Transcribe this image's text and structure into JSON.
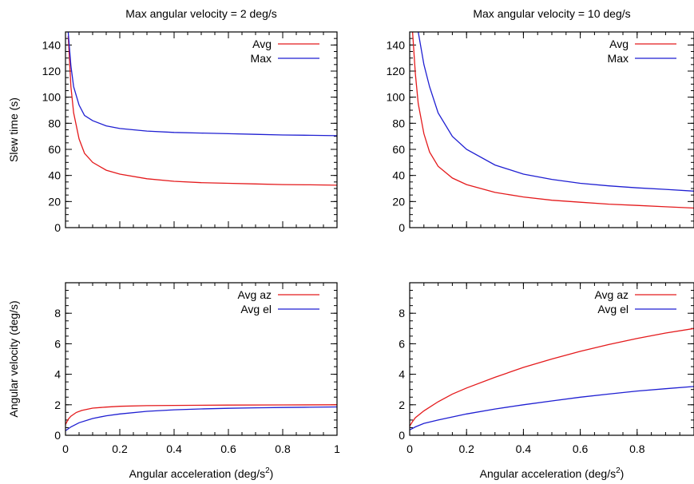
{
  "chart_data": [
    {
      "type": "line",
      "title": "Max angular velocity = 2 deg/s",
      "xlabel": "",
      "ylabel": "Slew time (s)",
      "xlim": [
        0,
        1
      ],
      "ylim": [
        0,
        150
      ],
      "xticks": [
        0,
        0.2,
        0.4,
        0.6,
        0.8,
        1
      ],
      "xtick_labels_shown": false,
      "yticks": [
        0,
        20,
        40,
        60,
        80,
        100,
        120,
        140
      ],
      "legend": "top-right",
      "grid": false,
      "series": [
        {
          "name": "Avg",
          "color": "#e41a1c",
          "x": [
            0.01,
            0.02,
            0.03,
            0.05,
            0.07,
            0.1,
            0.15,
            0.2,
            0.3,
            0.4,
            0.5,
            0.6,
            0.7,
            0.8,
            0.9,
            1.0
          ],
          "y": [
            147,
            108,
            88,
            68,
            57,
            50,
            44,
            41,
            37.5,
            35.5,
            34.5,
            34,
            33.5,
            33,
            32.8,
            32.5
          ]
        },
        {
          "name": "Max",
          "color": "#1f1fd2",
          "x": [
            0.01,
            0.02,
            0.03,
            0.05,
            0.07,
            0.1,
            0.15,
            0.2,
            0.3,
            0.4,
            0.5,
            0.6,
            0.7,
            0.8,
            0.9,
            1.0
          ],
          "y": [
            150,
            124,
            108,
            94,
            86,
            82,
            78,
            76,
            74,
            73,
            72.5,
            72,
            71.5,
            71,
            70.8,
            70.5
          ]
        }
      ]
    },
    {
      "type": "line",
      "title": "Max angular velocity = 10 deg/s",
      "xlabel": "",
      "ylabel": "",
      "xlim": [
        0,
        1
      ],
      "ylim": [
        0,
        150
      ],
      "xticks": [
        0,
        0.2,
        0.4,
        0.6,
        0.8,
        1
      ],
      "xtick_labels_shown": false,
      "yticks": [
        0,
        20,
        40,
        60,
        80,
        100,
        120,
        140
      ],
      "legend": "top-right",
      "grid": false,
      "series": [
        {
          "name": "Avg",
          "color": "#e41a1c",
          "x": [
            0.01,
            0.02,
            0.03,
            0.05,
            0.07,
            0.1,
            0.15,
            0.2,
            0.3,
            0.4,
            0.5,
            0.6,
            0.7,
            0.8,
            0.9,
            1.0
          ],
          "y": [
            150,
            118,
            95,
            72,
            58,
            47,
            38,
            33,
            27,
            23.5,
            21,
            19.5,
            18,
            17,
            16,
            15
          ]
        },
        {
          "name": "Max",
          "color": "#1f1fd2",
          "x": [
            0.03,
            0.05,
            0.07,
            0.1,
            0.15,
            0.2,
            0.3,
            0.4,
            0.5,
            0.6,
            0.7,
            0.8,
            0.9,
            1.0
          ],
          "y": [
            150,
            125,
            108,
            88,
            70,
            60,
            48,
            41,
            37,
            34,
            32,
            30.5,
            29.3,
            28
          ]
        }
      ]
    },
    {
      "type": "line",
      "title": "",
      "xlabel": "Angular acceleration (deg/s²)",
      "ylabel": "Angular velocity (deg/s)",
      "xlim": [
        0,
        1
      ],
      "ylim": [
        0,
        10
      ],
      "xticks": [
        0,
        0.2,
        0.4,
        0.6,
        0.8,
        1
      ],
      "xtick_labels": [
        "0",
        "0.2",
        "0.4",
        "0.6",
        "0.8",
        "1"
      ],
      "yticks": [
        0,
        2,
        4,
        6,
        8
      ],
      "legend": "top-right",
      "grid": false,
      "series": [
        {
          "name": "Avg az",
          "color": "#e41a1c",
          "x": [
            0.0,
            0.01,
            0.02,
            0.04,
            0.06,
            0.1,
            0.15,
            0.2,
            0.3,
            0.4,
            0.6,
            0.8,
            1.0
          ],
          "y": [
            0.7,
            1.05,
            1.25,
            1.5,
            1.63,
            1.78,
            1.85,
            1.9,
            1.94,
            1.96,
            1.98,
            1.99,
            2.0
          ]
        },
        {
          "name": "Avg el",
          "color": "#1f1fd2",
          "x": [
            0.0,
            0.02,
            0.05,
            0.1,
            0.15,
            0.2,
            0.3,
            0.4,
            0.5,
            0.6,
            0.7,
            0.8,
            0.9,
            1.0
          ],
          "y": [
            0.3,
            0.55,
            0.82,
            1.1,
            1.28,
            1.4,
            1.57,
            1.67,
            1.73,
            1.77,
            1.8,
            1.82,
            1.84,
            1.86
          ]
        }
      ]
    },
    {
      "type": "line",
      "title": "",
      "xlabel": "Angular acceleration (deg/s²)",
      "ylabel": "",
      "xlim": [
        0,
        1
      ],
      "ylim": [
        0,
        10
      ],
      "xticks": [
        0,
        0.2,
        0.4,
        0.6,
        0.8,
        1
      ],
      "xtick_labels": [
        "0",
        "0.2",
        "0.4",
        "0.6",
        "0.8",
        ""
      ],
      "yticks": [
        0,
        2,
        4,
        6,
        8
      ],
      "legend": "top-right",
      "grid": false,
      "series": [
        {
          "name": "Avg az",
          "color": "#e41a1c",
          "x": [
            0.0,
            0.01,
            0.02,
            0.05,
            0.1,
            0.15,
            0.2,
            0.3,
            0.4,
            0.5,
            0.6,
            0.7,
            0.8,
            0.9,
            1.0
          ],
          "y": [
            0.6,
            0.9,
            1.15,
            1.6,
            2.2,
            2.7,
            3.1,
            3.8,
            4.45,
            5.0,
            5.5,
            5.95,
            6.35,
            6.7,
            7.0
          ]
        },
        {
          "name": "Avg el",
          "color": "#1f1fd2",
          "x": [
            0.0,
            0.02,
            0.05,
            0.1,
            0.2,
            0.3,
            0.4,
            0.5,
            0.6,
            0.7,
            0.8,
            0.9,
            1.0
          ],
          "y": [
            0.35,
            0.55,
            0.78,
            1.0,
            1.4,
            1.72,
            2.0,
            2.25,
            2.5,
            2.7,
            2.9,
            3.05,
            3.2
          ]
        }
      ]
    }
  ]
}
